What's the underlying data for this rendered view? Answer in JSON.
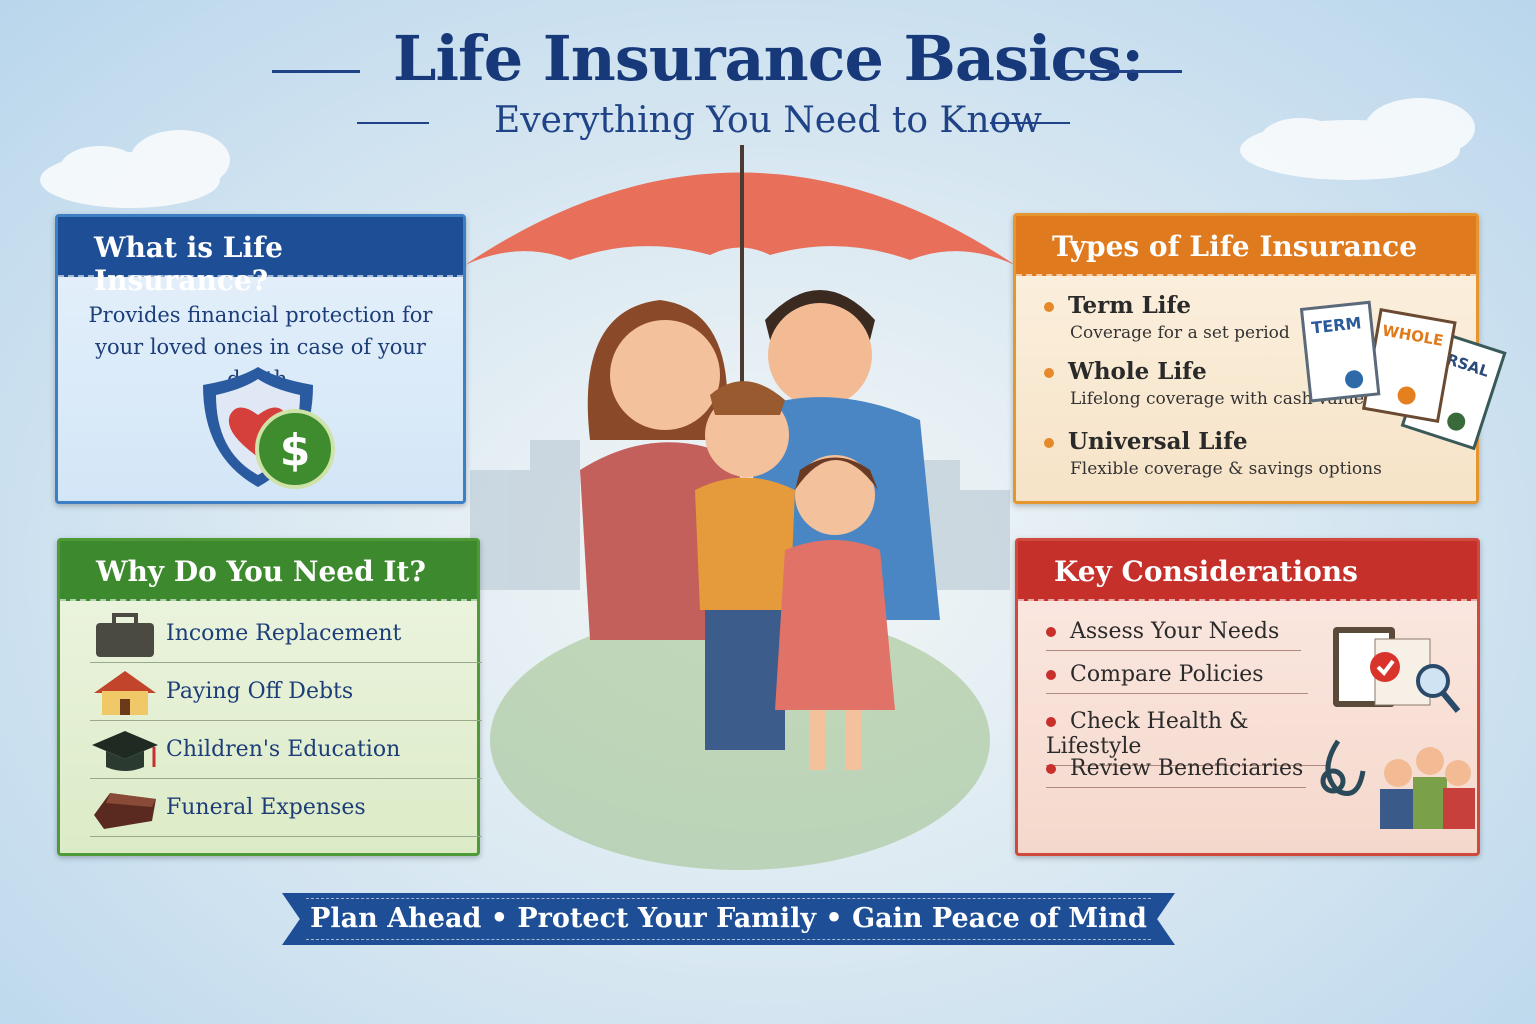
{
  "header": {
    "title": "Life Insurance Basics:",
    "subtitle": "Everything You Need to Know"
  },
  "what": {
    "heading": "What is Life Insurance?",
    "text": "Provides financial protection for your loved ones in case of your death.",
    "icon": "shield-heart-dollar-icon"
  },
  "why": {
    "heading": "Why Do You Need It?",
    "items": [
      {
        "label": "Income Replacement",
        "icon": "briefcase-icon"
      },
      {
        "label": "Paying Off Debts",
        "icon": "house-icon"
      },
      {
        "label": "Children's Education",
        "icon": "graduation-cap-icon"
      },
      {
        "label": "Funeral Expenses",
        "icon": "casket-icon"
      }
    ]
  },
  "types": {
    "heading": "Types of Life Insurance",
    "items": [
      {
        "name": "Term Life",
        "desc": "Coverage for a set period"
      },
      {
        "name": "Whole Life",
        "desc": "Lifelong coverage with cash value"
      },
      {
        "name": "Universal Life",
        "desc": "Flexible coverage & savings options"
      }
    ],
    "docs": [
      "TERM",
      "WHOLE",
      "VERSAL"
    ]
  },
  "considerations": {
    "heading": "Key Considerations",
    "items": [
      "Assess Your Needs",
      "Compare Policies",
      "Check Health & Lifestyle",
      "Review Beneficiaries"
    ]
  },
  "banner": {
    "text": "Plan Ahead • Protect Your Family • Gain Peace of Mind"
  },
  "colors": {
    "navy": "#17397a",
    "blue": "#1d4e96",
    "green": "#3d8a2e",
    "orange": "#df7a1f",
    "red": "#c5302b"
  }
}
